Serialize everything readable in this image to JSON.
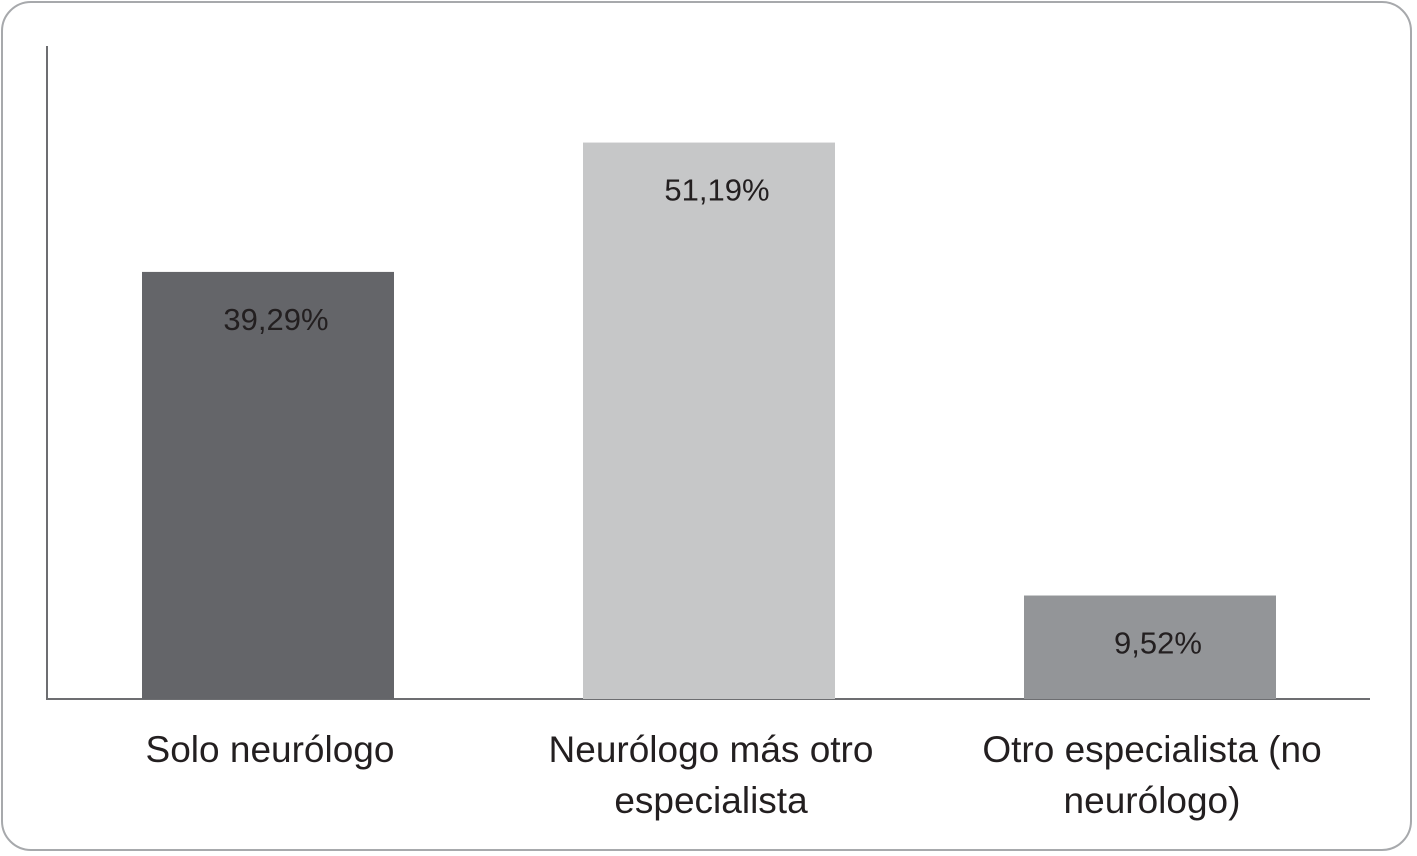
{
  "chart_data": {
    "type": "bar",
    "categories": [
      [
        "Solo neurólogo"
      ],
      [
        "Neurólogo más otro",
        "especialista"
      ],
      [
        "Otro especialista (no",
        "neurólogo)"
      ]
    ],
    "values": [
      39.29,
      51.19,
      9.52
    ],
    "value_labels": [
      "39,29%",
      "51,19%",
      "9,52%"
    ],
    "colors": [
      "#646569",
      "#c6c7c8",
      "#939598"
    ],
    "ylim": [
      0,
      60
    ],
    "grid": false,
    "legend": "none",
    "title": "",
    "xlabel": "",
    "ylabel": ""
  }
}
